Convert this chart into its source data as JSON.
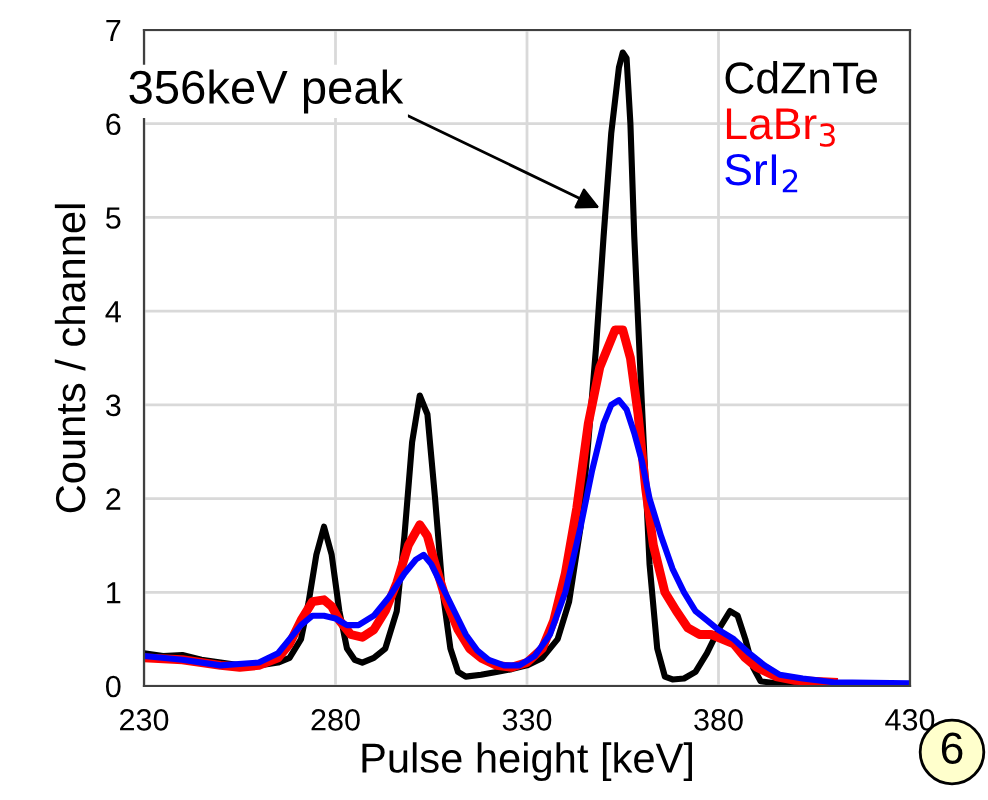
{
  "chart_data": {
    "type": "line",
    "xlabel": "Pulse height [keV]",
    "ylabel": "Counts / channel",
    "xlim": [
      230,
      430
    ],
    "xticks": [
      230,
      280,
      330,
      380,
      430
    ],
    "ylim": [
      0,
      7
    ],
    "yticks": [
      0,
      1,
      2,
      3,
      4,
      5,
      6,
      7
    ],
    "grid": true,
    "legend": "top right",
    "marker": "none",
    "line_style": "solid",
    "annotations": [
      {
        "text": "356keV peak",
        "x": 349,
        "y": 5.1
      },
      "6"
    ],
    "series": [
      {
        "name": "CdZnTe",
        "color": "#000000",
        "x": [
          230,
          235,
          240,
          245,
          250,
          255,
          260,
          265,
          268,
          271,
          273,
          275,
          277,
          279,
          281,
          283,
          285,
          287,
          290,
          293,
          296,
          298,
          300,
          302,
          304,
          306,
          308,
          310,
          312,
          314,
          318,
          322,
          326,
          330,
          334,
          338,
          341,
          344,
          346,
          348,
          350,
          352,
          354,
          355,
          356,
          357,
          358,
          360,
          362,
          364,
          366,
          368,
          371,
          374,
          377,
          380,
          383,
          385,
          387,
          389,
          391,
          395,
          405,
          430
        ],
        "values": [
          0.35,
          0.32,
          0.33,
          0.28,
          0.25,
          0.22,
          0.22,
          0.25,
          0.3,
          0.5,
          0.9,
          1.4,
          1.7,
          1.4,
          0.8,
          0.4,
          0.28,
          0.25,
          0.3,
          0.4,
          0.8,
          1.6,
          2.6,
          3.1,
          2.9,
          2.0,
          1.0,
          0.4,
          0.15,
          0.1,
          0.12,
          0.15,
          0.18,
          0.22,
          0.3,
          0.5,
          0.9,
          1.7,
          2.6,
          3.6,
          4.8,
          5.9,
          6.6,
          6.76,
          6.7,
          6.0,
          4.8,
          3.0,
          1.3,
          0.4,
          0.1,
          0.07,
          0.08,
          0.15,
          0.35,
          0.6,
          0.8,
          0.75,
          0.5,
          0.2,
          0.05,
          0.03,
          0.02,
          0.02
        ]
      },
      {
        "name": "LaBr$_{3}$",
        "color": "#ff0000",
        "x": [
          230,
          240,
          250,
          255,
          260,
          265,
          268,
          271,
          274,
          277,
          279,
          281,
          284,
          287,
          290,
          293,
          296,
          299,
          302,
          304,
          306,
          309,
          312,
          315,
          318,
          322,
          326,
          330,
          334,
          337,
          340,
          343,
          346,
          349,
          351,
          353,
          355,
          357,
          359,
          361,
          363,
          366,
          369,
          372,
          375,
          378,
          381,
          384,
          387,
          390,
          395,
          400,
          410
        ],
        "values": [
          0.3,
          0.28,
          0.22,
          0.2,
          0.22,
          0.3,
          0.45,
          0.7,
          0.9,
          0.92,
          0.85,
          0.7,
          0.55,
          0.52,
          0.6,
          0.8,
          1.1,
          1.5,
          1.72,
          1.6,
          1.3,
          0.9,
          0.6,
          0.4,
          0.3,
          0.22,
          0.2,
          0.25,
          0.4,
          0.7,
          1.2,
          1.9,
          2.8,
          3.4,
          3.6,
          3.8,
          3.8,
          3.5,
          2.9,
          2.1,
          1.5,
          1.0,
          0.8,
          0.62,
          0.55,
          0.55,
          0.5,
          0.45,
          0.3,
          0.2,
          0.1,
          0.06,
          0.04
        ]
      },
      {
        "name": "SrI$_{2}$",
        "color": "#0000ff",
        "x": [
          230,
          240,
          250,
          260,
          265,
          268,
          271,
          274,
          277,
          280,
          283,
          286,
          290,
          294,
          298,
          301,
          303,
          305,
          308,
          311,
          314,
          317,
          320,
          324,
          328,
          332,
          336,
          340,
          344,
          347,
          350,
          352,
          354,
          356,
          358,
          360,
          362,
          365,
          368,
          371,
          374,
          377,
          380,
          384,
          388,
          392,
          396,
          402,
          410,
          430
        ],
        "values": [
          0.32,
          0.28,
          0.22,
          0.25,
          0.35,
          0.5,
          0.65,
          0.75,
          0.75,
          0.72,
          0.65,
          0.65,
          0.75,
          0.95,
          1.2,
          1.35,
          1.4,
          1.3,
          1.05,
          0.8,
          0.55,
          0.38,
          0.28,
          0.22,
          0.22,
          0.32,
          0.55,
          1.0,
          1.7,
          2.3,
          2.8,
          3.0,
          3.05,
          2.95,
          2.7,
          2.4,
          2.0,
          1.6,
          1.25,
          1.0,
          0.8,
          0.7,
          0.6,
          0.5,
          0.35,
          0.22,
          0.12,
          0.08,
          0.04,
          0.03
        ]
      }
    ]
  }
}
